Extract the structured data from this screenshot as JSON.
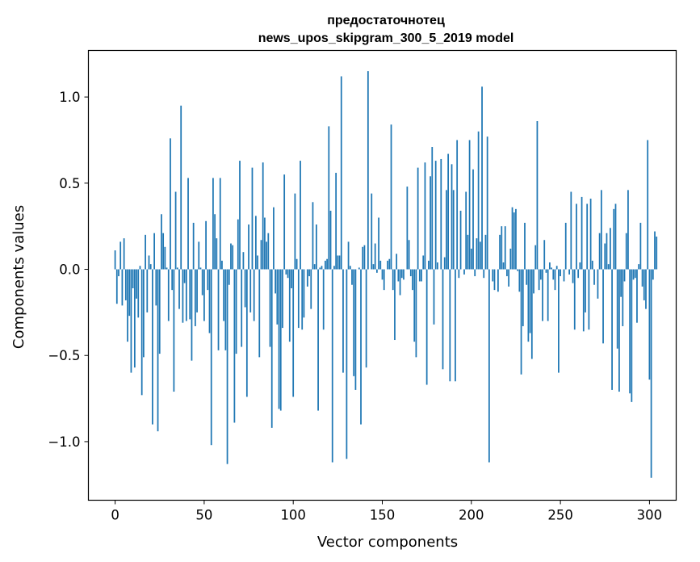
{
  "chart_data": {
    "type": "bar",
    "title_line1": "предостаточнотец",
    "title_line2": "news_upos_skipgram_300_5_2019 model",
    "xlabel": "Vector components",
    "ylabel": "Components values",
    "xlim": [
      -15,
      315
    ],
    "ylim": [
      -1.34,
      1.27
    ],
    "xticks": [
      0,
      50,
      100,
      150,
      200,
      250,
      300
    ],
    "xtick_labels": [
      "0",
      "50",
      "100",
      "150",
      "200",
      "250",
      "300"
    ],
    "yticks": [
      -1.0,
      -0.5,
      0.0,
      0.5,
      1.0
    ],
    "ytick_labels": [
      "−1.0",
      "−0.5",
      "0.0",
      "0.5",
      "1.0"
    ],
    "bar_color": "#1f77b4",
    "values": [
      0.11,
      -0.2,
      -0.04,
      0.16,
      -0.21,
      0.18,
      -0.18,
      -0.42,
      -0.27,
      -0.6,
      -0.11,
      -0.57,
      -0.17,
      -0.28,
      0.02,
      -0.73,
      -0.51,
      0.2,
      -0.25,
      0.08,
      0.03,
      -0.9,
      0.21,
      -0.21,
      -0.94,
      -0.49,
      0.32,
      0.21,
      0.13,
      0.01,
      -0.3,
      0.76,
      -0.12,
      -0.71,
      0.45,
      0.01,
      -0.23,
      0.95,
      -0.31,
      -0.08,
      -0.3,
      0.53,
      -0.29,
      -0.53,
      0.27,
      -0.33,
      -0.25,
      0.16,
      0.01,
      -0.15,
      -0.3,
      0.28,
      -0.12,
      -0.37,
      -1.02,
      0.53,
      0.32,
      0.18,
      -0.47,
      0.53,
      0.05,
      -0.3,
      -0.47,
      -1.13,
      -0.09,
      0.15,
      0.14,
      -0.89,
      -0.49,
      0.29,
      0.63,
      -0.45,
      0.1,
      -0.22,
      -0.74,
      0.26,
      -0.25,
      0.59,
      -0.3,
      0.31,
      0.08,
      -0.51,
      0.17,
      0.62,
      0.3,
      0.16,
      0.21,
      -0.45,
      -0.92,
      0.36,
      -0.14,
      -0.32,
      -0.81,
      -0.82,
      -0.34,
      0.55,
      -0.03,
      -0.05,
      -0.42,
      -0.11,
      -0.74,
      0.44,
      0.06,
      -0.34,
      0.63,
      -0.35,
      -0.28,
      0.0,
      -0.1,
      -0.04,
      -0.23,
      0.39,
      0.03,
      0.26,
      -0.82,
      0.01,
      0.02,
      -0.35,
      0.05,
      0.06,
      0.83,
      0.34,
      -1.12,
      0.02,
      0.56,
      0.08,
      0.08,
      1.12,
      -0.6,
      0.0,
      -1.1,
      0.16,
      0.02,
      -0.09,
      -0.62,
      -0.7,
      0.0,
      0.01,
      -0.9,
      0.13,
      0.14,
      -0.57,
      1.15,
      0.0,
      0.44,
      0.03,
      0.15,
      -0.02,
      0.3,
      0.05,
      -0.06,
      -0.12,
      0.0,
      0.05,
      0.06,
      0.84,
      -0.12,
      -0.41,
      0.09,
      -0.07,
      -0.15,
      -0.05,
      -0.06,
      0.0,
      0.48,
      0.17,
      -0.04,
      -0.12,
      -0.42,
      -0.51,
      0.59,
      -0.07,
      -0.07,
      0.08,
      0.62,
      -0.67,
      0.05,
      0.54,
      0.71,
      -0.32,
      0.63,
      0.04,
      0.0,
      0.64,
      -0.58,
      0.07,
      0.46,
      0.67,
      -0.65,
      0.61,
      0.46,
      -0.65,
      0.75,
      -0.05,
      0.34,
      0.0,
      -0.03,
      0.45,
      0.2,
      0.75,
      0.12,
      0.58,
      -0.04,
      0.18,
      0.8,
      0.16,
      1.06,
      -0.05,
      0.2,
      0.77,
      -1.12,
      0.0,
      -0.07,
      -0.12,
      0.0,
      -0.13,
      0.2,
      0.25,
      0.04,
      0.25,
      -0.04,
      -0.1,
      0.12,
      0.36,
      0.33,
      0.35,
      -0.01,
      -0.13,
      -0.61,
      -0.33,
      0.27,
      -0.09,
      -0.42,
      -0.37,
      -0.52,
      -0.14,
      0.14,
      0.86,
      -0.12,
      -0.06,
      -0.3,
      0.17,
      -0.02,
      -0.3,
      0.04,
      0.01,
      -0.06,
      -0.12,
      0.02,
      -0.6,
      -0.04,
      0.0,
      -0.07,
      0.27,
      0.0,
      -0.03,
      0.45,
      -0.08,
      -0.35,
      0.38,
      -0.05,
      0.04,
      0.42,
      -0.36,
      -0.25,
      0.38,
      -0.35,
      0.41,
      0.05,
      -0.09,
      0.0,
      -0.17,
      0.21,
      0.46,
      -0.43,
      0.15,
      0.21,
      0.03,
      0.24,
      -0.7,
      0.35,
      0.38,
      -0.46,
      -0.71,
      -0.16,
      -0.33,
      -0.07,
      0.21,
      0.46,
      -0.72,
      -0.77,
      -0.06,
      -0.05,
      -0.31,
      0.03,
      0.27,
      -0.1,
      -0.18,
      -0.23,
      0.75,
      -0.64,
      -1.21,
      -0.06,
      0.22,
      0.19
    ]
  }
}
